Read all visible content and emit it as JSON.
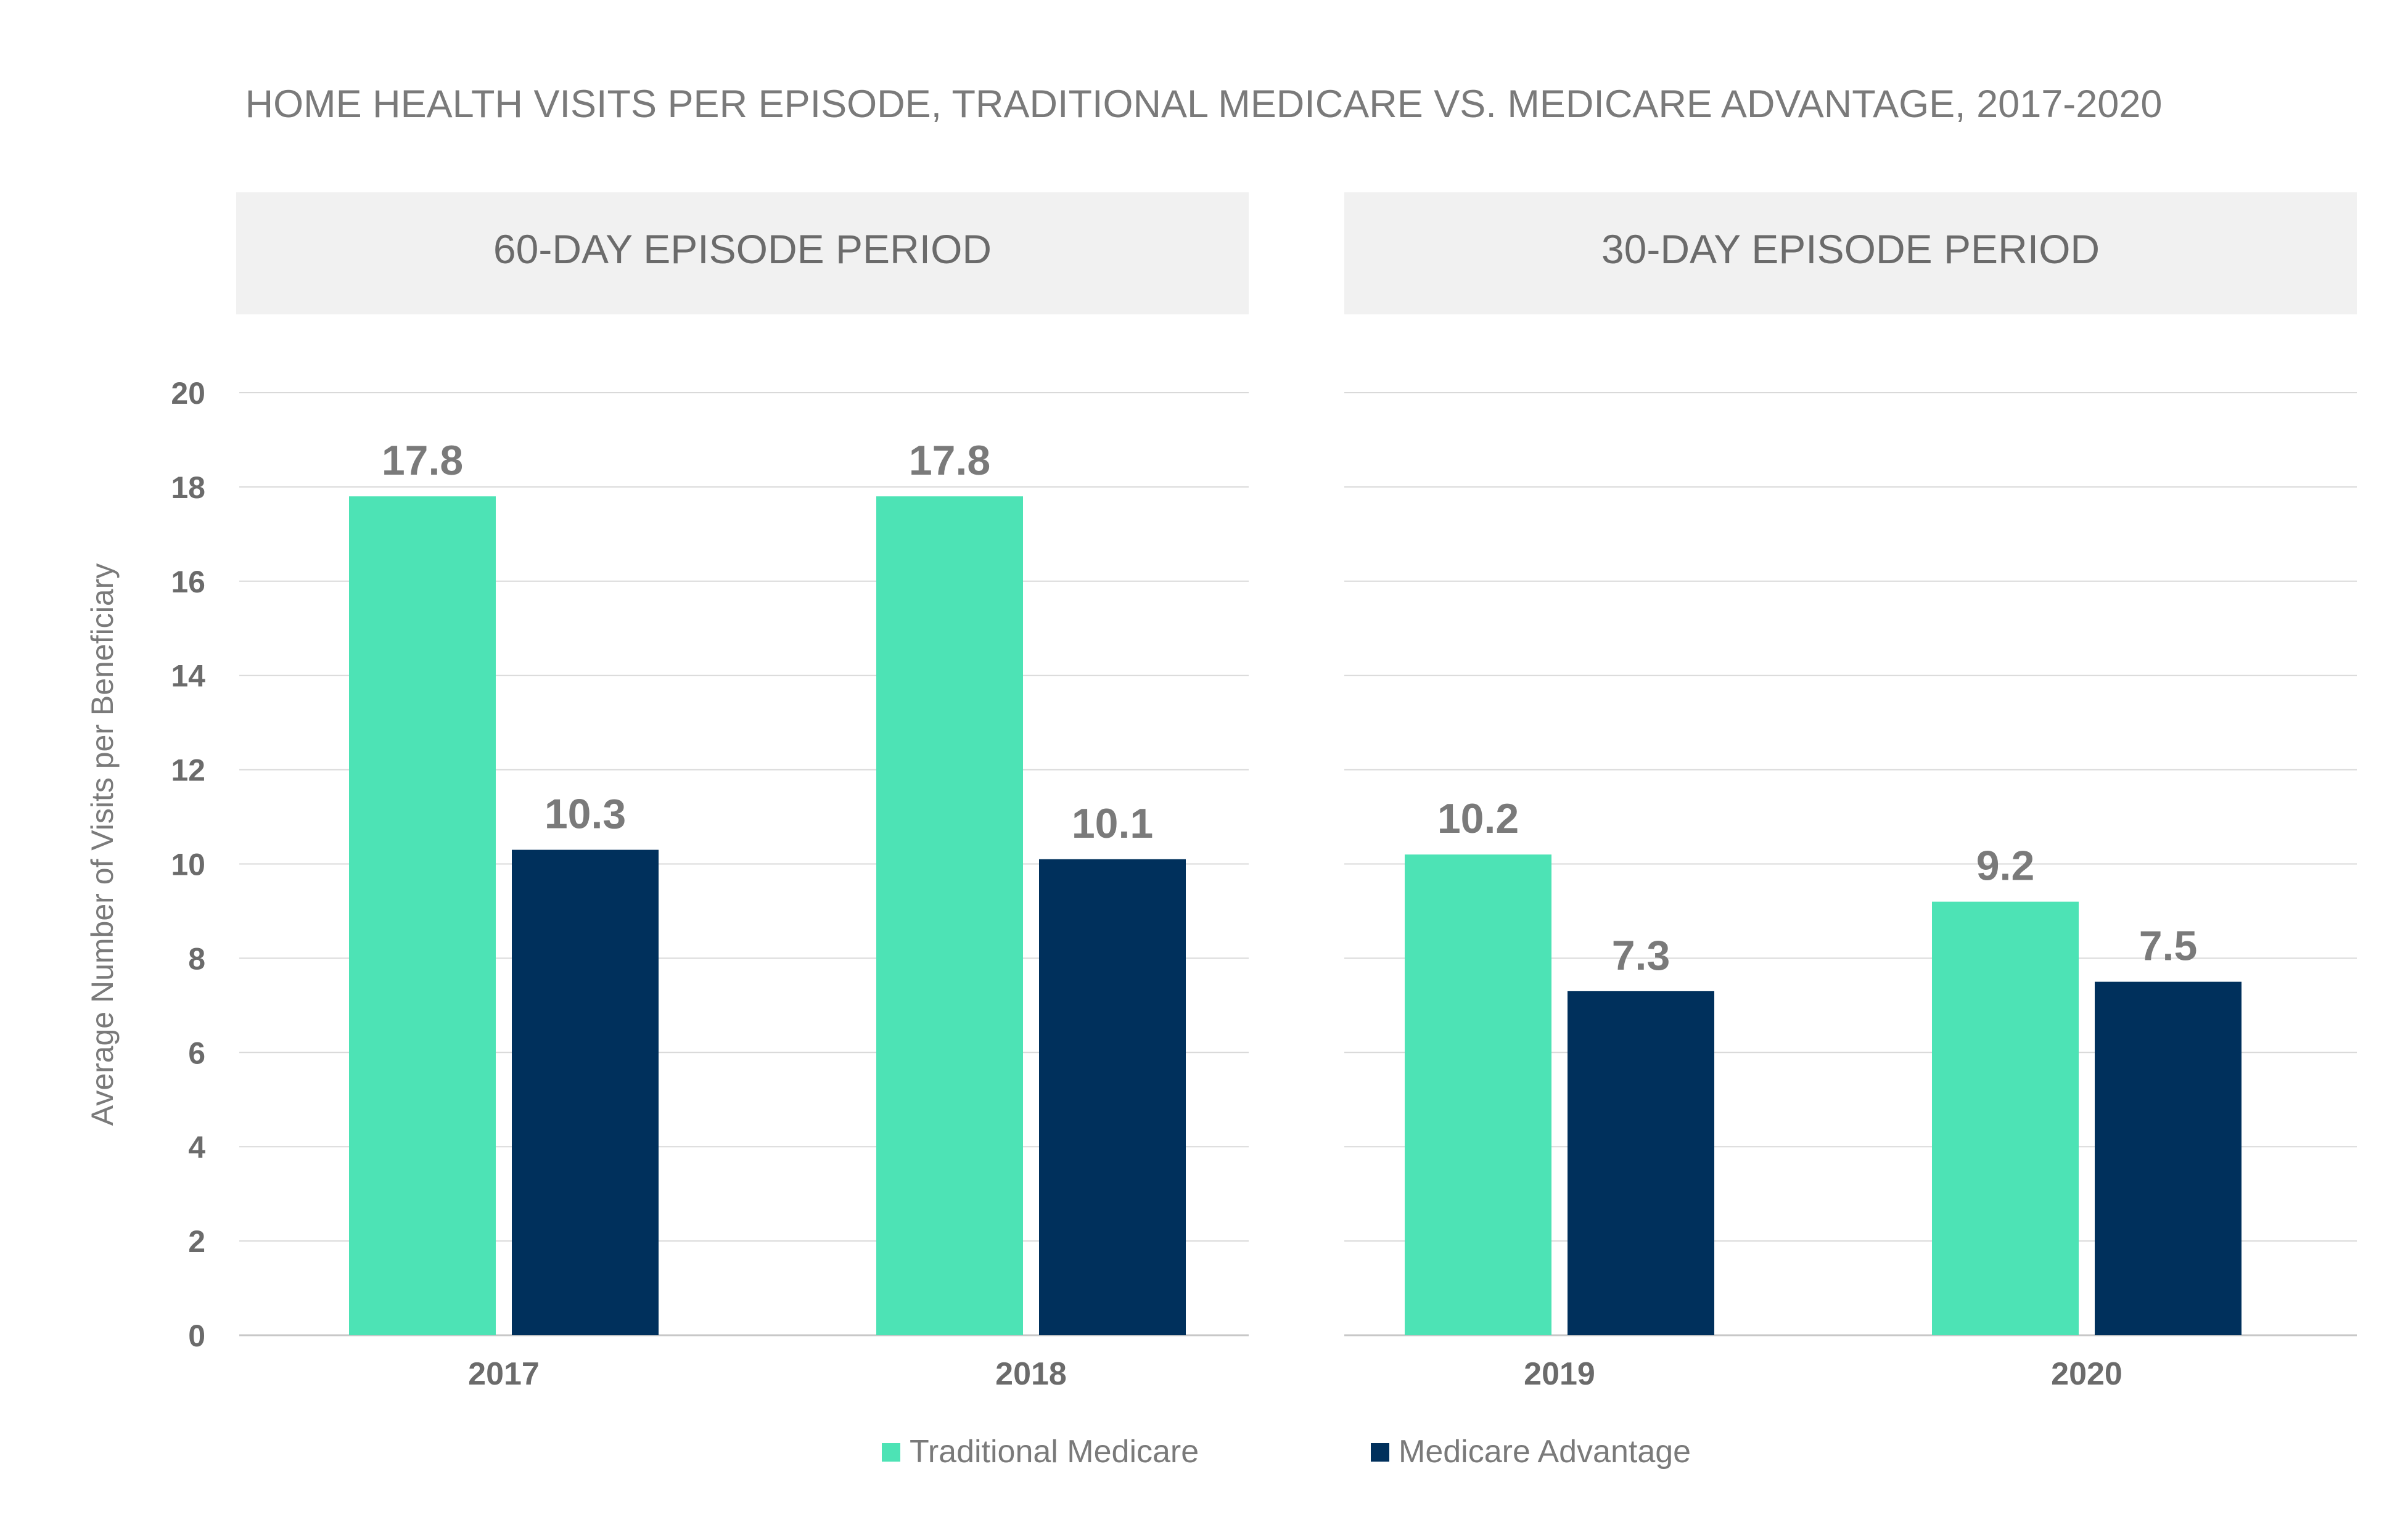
{
  "colors": {
    "traditional": "#4de3b5",
    "advantage": "#00305c",
    "panel_bg": "#f1f1f1",
    "grid": "#d9d9d9",
    "text": "#7a7a7a"
  },
  "chart_data": {
    "type": "bar",
    "title": "HOME HEALTH VISITS PER EPISODE, TRADITIONAL MEDICARE VS. MEDICARE ADVANTAGE, 2017-2020",
    "ylabel": "Average Number of Visits per Beneficiary",
    "xlabel": "",
    "ylim": [
      0,
      20
    ],
    "yticks": [
      "0",
      "2",
      "4",
      "6",
      "8",
      "10",
      "12",
      "14",
      "16",
      "18",
      "20"
    ],
    "grid": true,
    "legend_position": "bottom",
    "series": [
      {
        "name": "Traditional Medicare",
        "color": "#4de3b5"
      },
      {
        "name": "Medicare Advantage",
        "color": "#00305c"
      }
    ],
    "panels": [
      {
        "title": "60-DAY EPISODE PERIOD",
        "categories": [
          "2017",
          "2018"
        ],
        "values": [
          [
            17.8,
            10.3
          ],
          [
            17.8,
            10.1
          ]
        ],
        "labels": [
          [
            "17.8",
            "10.3"
          ],
          [
            "17.8",
            "10.1"
          ]
        ]
      },
      {
        "title": "30-DAY EPISODE PERIOD",
        "categories": [
          "2019",
          "2020"
        ],
        "values": [
          [
            10.2,
            7.3
          ],
          [
            9.2,
            7.5
          ]
        ],
        "labels": [
          [
            "10.2",
            "7.3"
          ],
          [
            "9.2",
            "7.5"
          ]
        ]
      }
    ]
  }
}
